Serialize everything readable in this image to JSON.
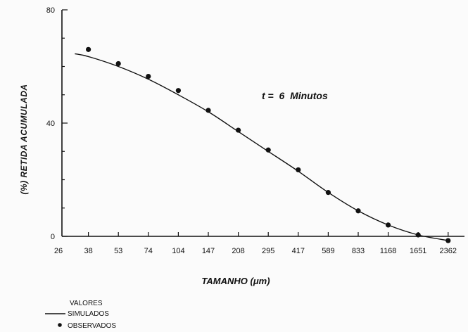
{
  "chart_data": {
    "type": "line",
    "title": "",
    "xlabel": "TAMANHO (μm)",
    "ylabel": "(%) RETIDA ACUMULADA",
    "x_categories": [
      "26",
      "38",
      "53",
      "74",
      "104",
      "147",
      "208",
      "295",
      "417",
      "589",
      "833",
      "1168",
      "1651",
      "2362"
    ],
    "y_ticks": [
      "0",
      "40",
      "80"
    ],
    "ylim": [
      0,
      80
    ],
    "annotation": "t =  6  Minutos",
    "legend": {
      "title": "VALORES",
      "placement": "bottom-left",
      "items": [
        "SIMULADOS",
        "OBSERVADOS"
      ]
    },
    "series": [
      {
        "name": "SIMULADOS",
        "style": "line",
        "x": [
          "32",
          "38",
          "53",
          "74",
          "104",
          "147",
          "208",
          "295",
          "417",
          "589",
          "833",
          "1168",
          "1651",
          "2362"
        ],
        "values": [
          64.5,
          63.5,
          60,
          55.5,
          50,
          44,
          37,
          30,
          23,
          15.5,
          9,
          4,
          0.5,
          -1.5
        ]
      },
      {
        "name": "OBSERVADOS",
        "style": "points",
        "x": [
          "38",
          "53",
          "74",
          "104",
          "147",
          "208",
          "295",
          "417",
          "589",
          "833",
          "1168",
          "1651",
          "2362"
        ],
        "values": [
          66,
          61,
          56.5,
          51.5,
          44.5,
          37.5,
          30.5,
          23.5,
          15.5,
          9,
          4,
          0.5,
          -1.5
        ]
      }
    ],
    "grid": false
  }
}
